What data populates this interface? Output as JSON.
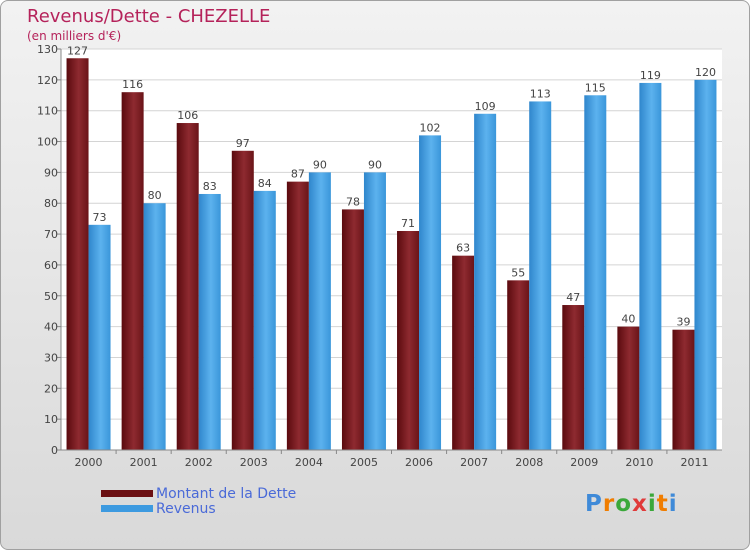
{
  "title": "Revenus/Dette - CHEZELLE",
  "subtitle": "(en milliers d'€)",
  "logo": {
    "letters": [
      "P",
      "r",
      "o",
      "x",
      "i",
      "t",
      "i"
    ],
    "colors": [
      "#3f8ad8",
      "#f07d00",
      "#3aa83a",
      "#e03a3a",
      "#3aa83a",
      "#f07d00",
      "#3f8ad8"
    ]
  },
  "legend": [
    {
      "label": "Montant de la Dette",
      "color": "#6b0f12"
    },
    {
      "label": "Revenus",
      "color": "#3d9ae0"
    }
  ],
  "chart_data": {
    "type": "bar",
    "categories": [
      "2000",
      "2001",
      "2002",
      "2003",
      "2004",
      "2005",
      "2006",
      "2007",
      "2008",
      "2009",
      "2010",
      "2011"
    ],
    "series": [
      {
        "name": "Montant de la Dette",
        "values": [
          127,
          116,
          106,
          97,
          87,
          78,
          71,
          63,
          55,
          47,
          40,
          39
        ],
        "color": "#7a1a20"
      },
      {
        "name": "Revenus",
        "values": [
          73,
          80,
          83,
          84,
          90,
          90,
          102,
          109,
          113,
          115,
          119,
          120
        ],
        "color": "#3d9ae0"
      }
    ],
    "ylim": [
      0,
      130
    ],
    "yticks": [
      0,
      10,
      20,
      30,
      40,
      50,
      60,
      70,
      80,
      90,
      100,
      110,
      120,
      130
    ],
    "grid": true
  }
}
